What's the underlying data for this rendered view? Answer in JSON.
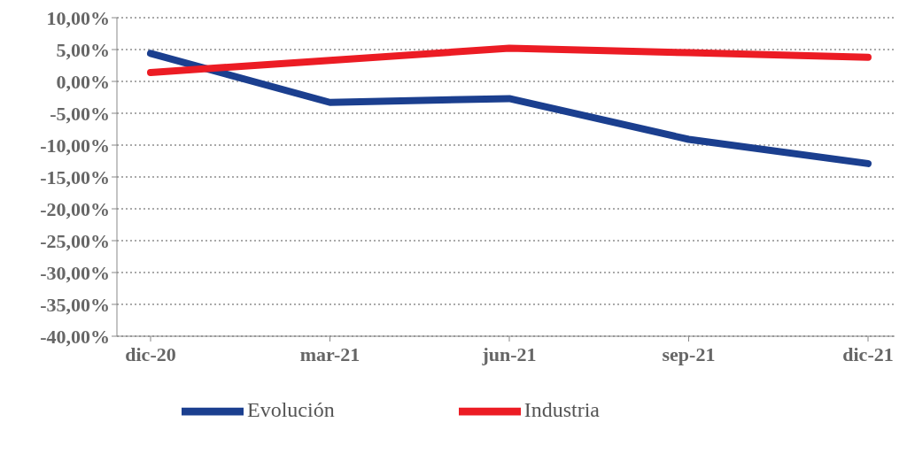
{
  "chart_data": {
    "type": "line",
    "categories": [
      "dic-20",
      "mar-21",
      "jun-21",
      "sep-21",
      "dic-21"
    ],
    "series": [
      {
        "name": "Evolución",
        "color": "#1b3f8f",
        "values": [
          4.4,
          -3.3,
          -2.7,
          -9.1,
          -12.9
        ]
      },
      {
        "name": "Industria",
        "color": "#ec1c24",
        "values": [
          1.4,
          3.3,
          5.2,
          4.5,
          3.8
        ]
      }
    ],
    "ylim": [
      -40,
      10
    ],
    "yticks": [
      {
        "value": -40,
        "label": "-40,00%"
      },
      {
        "value": -35,
        "label": "-35,00%"
      },
      {
        "value": -30,
        "label": "-30,00%"
      },
      {
        "value": -25,
        "label": "-25,00%"
      },
      {
        "value": -20,
        "label": "-20,00%"
      },
      {
        "value": -15,
        "label": "-15,00%"
      },
      {
        "value": -10,
        "label": "-10,00%"
      },
      {
        "value": -5,
        "label": "-5,00%"
      },
      {
        "value": 0,
        "label": "0,00%"
      },
      {
        "value": 5,
        "label": "5,00%"
      },
      {
        "value": 10,
        "label": "10,00%"
      }
    ],
    "grid": "y",
    "legend": "bottom",
    "marker": "none",
    "line_style": "solid"
  }
}
